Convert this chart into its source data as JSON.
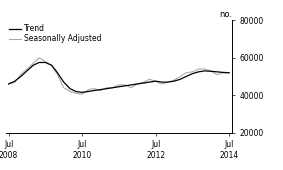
{
  "title": "",
  "ylabel": "no.",
  "ylim": [
    20000,
    80000
  ],
  "yticks": [
    20000,
    40000,
    60000,
    80000
  ],
  "xlim_start": 2008.42,
  "xlim_end": 2014.58,
  "xtick_positions": [
    2008.5,
    2010.5,
    2012.5,
    2014.5
  ],
  "xtick_labels": [
    "Jul\n2008",
    "Jul\n2010",
    "Jul\n2012",
    "Jul\n2014"
  ],
  "trend_color": "#000000",
  "seasonal_color": "#aaaaaa",
  "legend_entries": [
    "Trend",
    "Seasonally Adjusted"
  ],
  "background_color": "#ffffff",
  "trend_data_x": [
    2008.5,
    2008.67,
    2008.83,
    2009.0,
    2009.17,
    2009.33,
    2009.5,
    2009.67,
    2009.83,
    2010.0,
    2010.17,
    2010.33,
    2010.5,
    2010.67,
    2010.83,
    2011.0,
    2011.17,
    2011.33,
    2011.5,
    2011.67,
    2011.83,
    2012.0,
    2012.17,
    2012.33,
    2012.5,
    2012.67,
    2012.83,
    2013.0,
    2013.17,
    2013.33,
    2013.5,
    2013.67,
    2013.83,
    2014.0,
    2014.17,
    2014.33,
    2014.5
  ],
  "trend_data_y": [
    46000,
    47500,
    50000,
    53000,
    56000,
    57500,
    57500,
    56000,
    52000,
    47000,
    43500,
    42000,
    41500,
    42000,
    42500,
    43000,
    43500,
    44000,
    44500,
    45000,
    45500,
    46000,
    46500,
    47000,
    47500,
    47000,
    47000,
    47500,
    48500,
    50000,
    51500,
    52500,
    53000,
    52800,
    52500,
    52200,
    52000
  ],
  "seasonal_data_x": [
    2008.5,
    2008.67,
    2008.83,
    2009.0,
    2009.17,
    2009.33,
    2009.5,
    2009.67,
    2009.83,
    2010.0,
    2010.17,
    2010.33,
    2010.5,
    2010.67,
    2010.83,
    2011.0,
    2011.17,
    2011.33,
    2011.5,
    2011.67,
    2011.83,
    2012.0,
    2012.17,
    2012.33,
    2012.5,
    2012.67,
    2012.83,
    2013.0,
    2013.17,
    2013.33,
    2013.5,
    2013.67,
    2013.83,
    2014.0,
    2014.17,
    2014.33,
    2014.5
  ],
  "seasonal_data_y": [
    46000,
    47000,
    51000,
    54000,
    57000,
    60000,
    58000,
    56000,
    51000,
    44000,
    42000,
    41000,
    40500,
    43000,
    43500,
    42500,
    44000,
    44000,
    45500,
    45500,
    44000,
    46000,
    47000,
    48500,
    47500,
    46000,
    47000,
    48000,
    50000,
    52000,
    52500,
    54000,
    54000,
    53000,
    51000,
    52000,
    52000
  ],
  "legend_fontsize": 5.5,
  "tick_fontsize": 5.5,
  "ylabel_fontsize": 6
}
